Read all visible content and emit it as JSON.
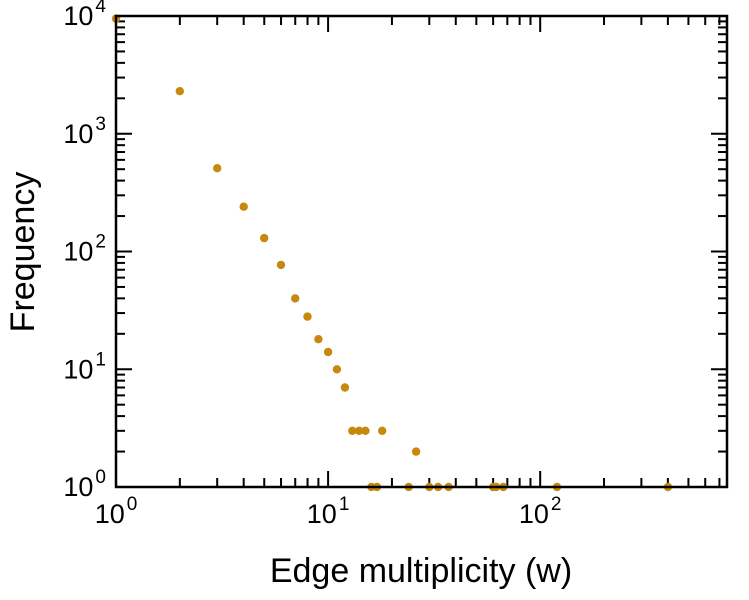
{
  "figure": {
    "background_color": "#ffffff",
    "axis_color": "#000000",
    "point_color": "#c8870d"
  },
  "chart_data": {
    "type": "scatter",
    "title": "",
    "xlabel": "Edge multiplicity (w)",
    "ylabel": "Frequency",
    "x_scale": "log",
    "y_scale": "log",
    "xlim": [
      1,
      760
    ],
    "ylim": [
      1,
      10000
    ],
    "tick_base": "10",
    "x_major_tick_exponents": [
      0,
      1,
      2
    ],
    "y_major_tick_exponents": [
      0,
      1,
      2,
      3,
      4
    ],
    "grid": false,
    "legend": "none",
    "marker": "filled-circle",
    "points": [
      [
        1,
        9500
      ],
      [
        2,
        2300
      ],
      [
        3,
        510
      ],
      [
        4,
        240
      ],
      [
        5,
        130
      ],
      [
        6,
        77
      ],
      [
        7,
        40
      ],
      [
        8,
        28
      ],
      [
        9,
        18
      ],
      [
        10,
        14
      ],
      [
        11,
        10
      ],
      [
        12,
        7
      ],
      [
        13,
        3
      ],
      [
        14,
        3
      ],
      [
        15,
        3
      ],
      [
        18,
        3
      ],
      [
        26,
        2
      ],
      [
        16,
        1
      ],
      [
        17,
        1
      ],
      [
        24,
        1
      ],
      [
        30,
        1
      ],
      [
        33,
        1
      ],
      [
        37,
        1
      ],
      [
        60,
        1
      ],
      [
        62,
        1
      ],
      [
        67,
        1
      ],
      [
        120,
        1
      ],
      [
        400,
        1
      ]
    ]
  }
}
